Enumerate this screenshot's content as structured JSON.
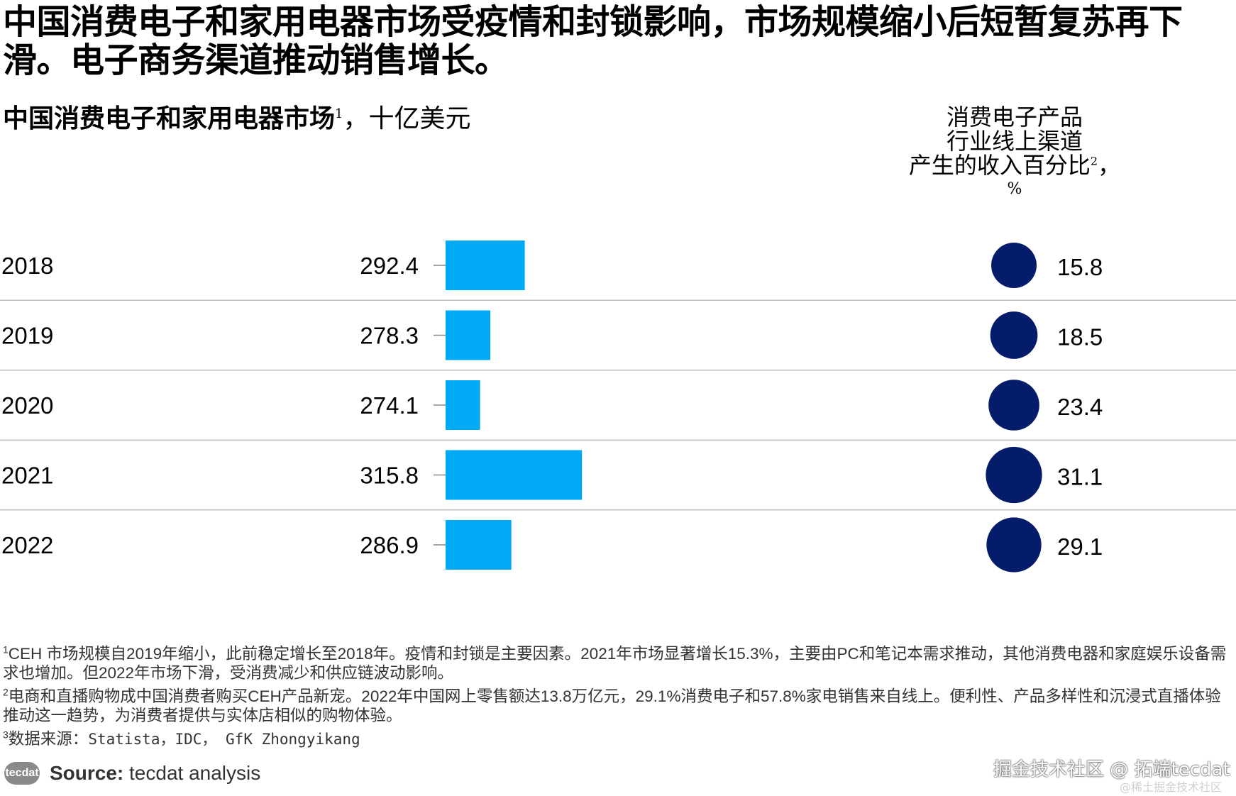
{
  "headline": "中国消费电子和家用电器市场受疫情和封锁影响，市场规模缩小后短暂复苏再下滑。电子商务渠道推动销售增长。",
  "chart_title": {
    "main": "中国消费电子和家用电器市场",
    "sup": "1",
    "unit": "，十亿美元"
  },
  "side_title": {
    "line1": "消费电子产品",
    "line2": "行业线上渠道",
    "line3": "产生的收入百分比",
    "sup": "2",
    "comma": "，",
    "unit": "%"
  },
  "chart_data": {
    "type": "bar",
    "orientation": "horizontal",
    "categories": [
      "2018",
      "2019",
      "2020",
      "2021",
      "2022"
    ],
    "series": [
      {
        "values": [
          292.4,
          278.3,
          274.1,
          315.8,
          286.9
        ],
        "labels": [
          "292.4",
          "278.3",
          "274.1",
          "315.8",
          "286.9"
        ],
        "color": "#00a9f4"
      },
      {
        "values": [
          15.8,
          18.5,
          23.4,
          31.1,
          29.1
        ],
        "labels": [
          "15.8",
          "18.5",
          "23.4",
          "31.1",
          "29.1"
        ],
        "color": "#051c6b",
        "mark": "circle"
      }
    ],
    "title": "中国消费电子和家用电器市场1，十亿美元",
    "grid": false
  },
  "colors": {
    "bar": "#00a9f4",
    "bubble": "#051c6b",
    "divider": "#bdbdbd"
  },
  "footnotes": {
    "fn1_sup": "1",
    "fn1": "CEH 市场规模自2019年缩小，此前稳定增长至2018年。疫情和封锁是主要因素。2021年市场显著增长15.3%，主要由PC和笔记本需求推动，其他消费电器和家庭娱乐设备需求也增加。但2022年市场下滑，受消费减少和供应链波动影响。",
    "fn2_sup": "2",
    "fn2": "电商和直播购物成中国消费者购买CEH产品新宠。2022年中国网上零售额达13.8万亿元，29.1%消费电子和57.8%家电销售来自线上。便利性、产品多样性和沉浸式直播体验推动这一趋势，为消费者提供与实体店相似的购物体验。",
    "fn3_sup": "3",
    "fn3_prefix": "数据来源：",
    "fn3": "Statista，IDC， GfK Zhongyikang"
  },
  "source": {
    "logo_text": "tecdat",
    "label": "Source:",
    "text": "tecdat analysis"
  },
  "watermark": {
    "main": "掘金技术社区 @ 拓端tecdat",
    "small": "@稀土掘金技术社区"
  }
}
